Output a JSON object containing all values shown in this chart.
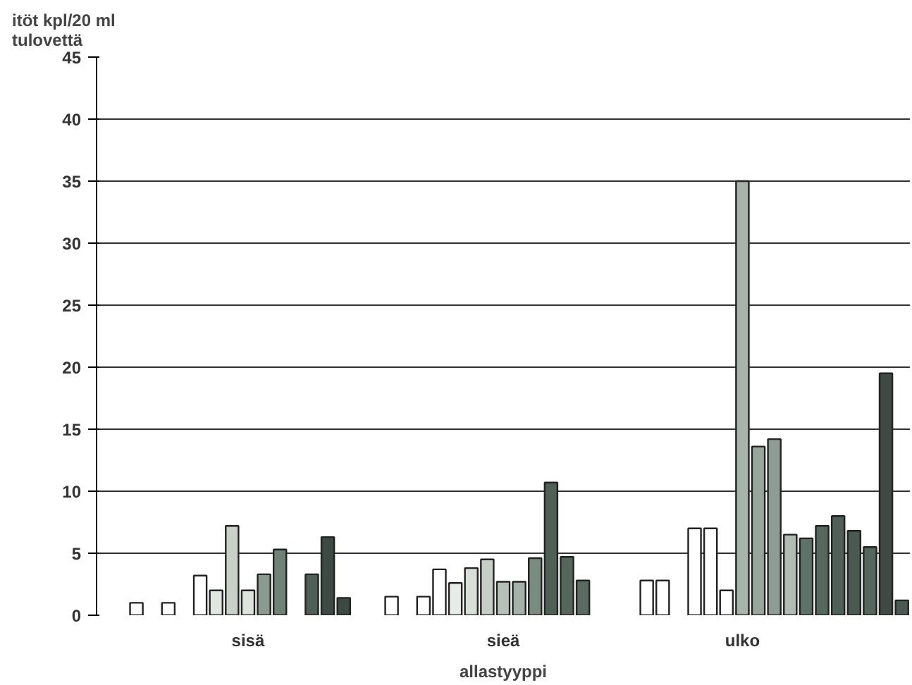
{
  "chart_data": {
    "type": "bar",
    "ylabel": "itöt kpl/20 ml\ntulovettä",
    "xlabel": "allastyyppi",
    "categories": [
      null,
      null,
      null,
      null,
      null,
      null,
      null,
      null,
      null,
      "sisä",
      null,
      null,
      null,
      null,
      null,
      null,
      null,
      null,
      null,
      null,
      null,
      null,
      null,
      null,
      null,
      "sieä",
      null,
      null,
      null,
      null,
      null,
      null,
      null,
      null,
      null,
      null,
      null,
      null,
      null,
      null,
      "ulko",
      null,
      null,
      null,
      null,
      null,
      null,
      null,
      null,
      null,
      null
    ],
    "values": [
      null,
      null,
      1,
      null,
      1,
      null,
      3.2,
      2,
      7.2,
      2,
      3.3,
      5.3,
      null,
      3.3,
      6.3,
      1.4,
      null,
      null,
      1.5,
      null,
      1.5,
      3.7,
      2.6,
      3.8,
      4.5,
      2.7,
      2.7,
      4.6,
      10.7,
      4.7,
      2.8,
      null,
      null,
      null,
      2.8,
      2.8,
      null,
      7,
      7,
      2,
      35,
      13.6,
      14.2,
      6.5,
      6.2,
      7.2,
      8,
      6.8,
      5.5,
      19.5,
      1.2
    ],
    "colors": [
      "#ffffff",
      "#ffffff",
      "#ffffff",
      "#ffffff",
      "#ffffff",
      "#ffffff",
      "#ffffff",
      "#e0e6e0",
      "#c8d0c8",
      "#dde3dd",
      "#8a9a90",
      "#6f8276",
      "#ffffff",
      "#4f5e56",
      "#3d4a43",
      "#3d4a43",
      "#ffffff",
      "#ffffff",
      "#ffffff",
      "#ffffff",
      "#ffffff",
      "#ffffff",
      "#e8ece8",
      "#d8dfd8",
      "#c5cec7",
      "#b5c0b8",
      "#a5b2a9",
      "#7a8c80",
      "#4f6157",
      "#55675d",
      "#5a6b61",
      "#ffffff",
      "#ffffff",
      "#ffffff",
      "#ffffff",
      "#ffffff",
      "#ffffff",
      "#ffffff",
      "#ffffff",
      "#ffffff",
      "#a8b3ab",
      "#98a59c",
      "#8e9c93",
      "#b0bbb3",
      "#5f7268",
      "#55685e",
      "#4e6057",
      "#4a5a52",
      "#55675d",
      "#3f4a45",
      "#4a5a52"
    ],
    "ylim": [
      0,
      45
    ],
    "yticks": [
      0,
      5,
      10,
      15,
      20,
      25,
      30,
      35,
      40,
      45
    ],
    "grid": "y"
  }
}
